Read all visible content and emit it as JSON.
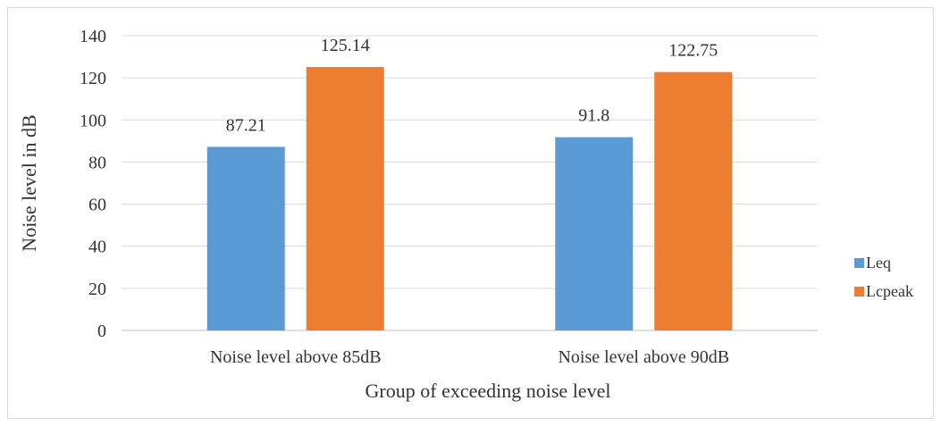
{
  "chart_data": {
    "type": "bar",
    "categories": [
      "Noise level above 85dB",
      "Noise level above 90dB"
    ],
    "series": [
      {
        "name": "Leq",
        "values": [
          87.21,
          91.8
        ],
        "color": "#5B9BD5"
      },
      {
        "name": "Lcpeak",
        "values": [
          125.14,
          122.75
        ],
        "color": "#ED7D31"
      }
    ],
    "data_labels": [
      [
        "87.21",
        "91.8"
      ],
      [
        "125.14",
        "122.75"
      ]
    ],
    "xlabel": "Group of exceeding noise level",
    "ylabel": "Noise level in dB",
    "ylim": [
      0,
      140
    ],
    "yticks": [
      0,
      20,
      40,
      60,
      80,
      100,
      120,
      140
    ],
    "grid": true,
    "legend_position": "right"
  }
}
